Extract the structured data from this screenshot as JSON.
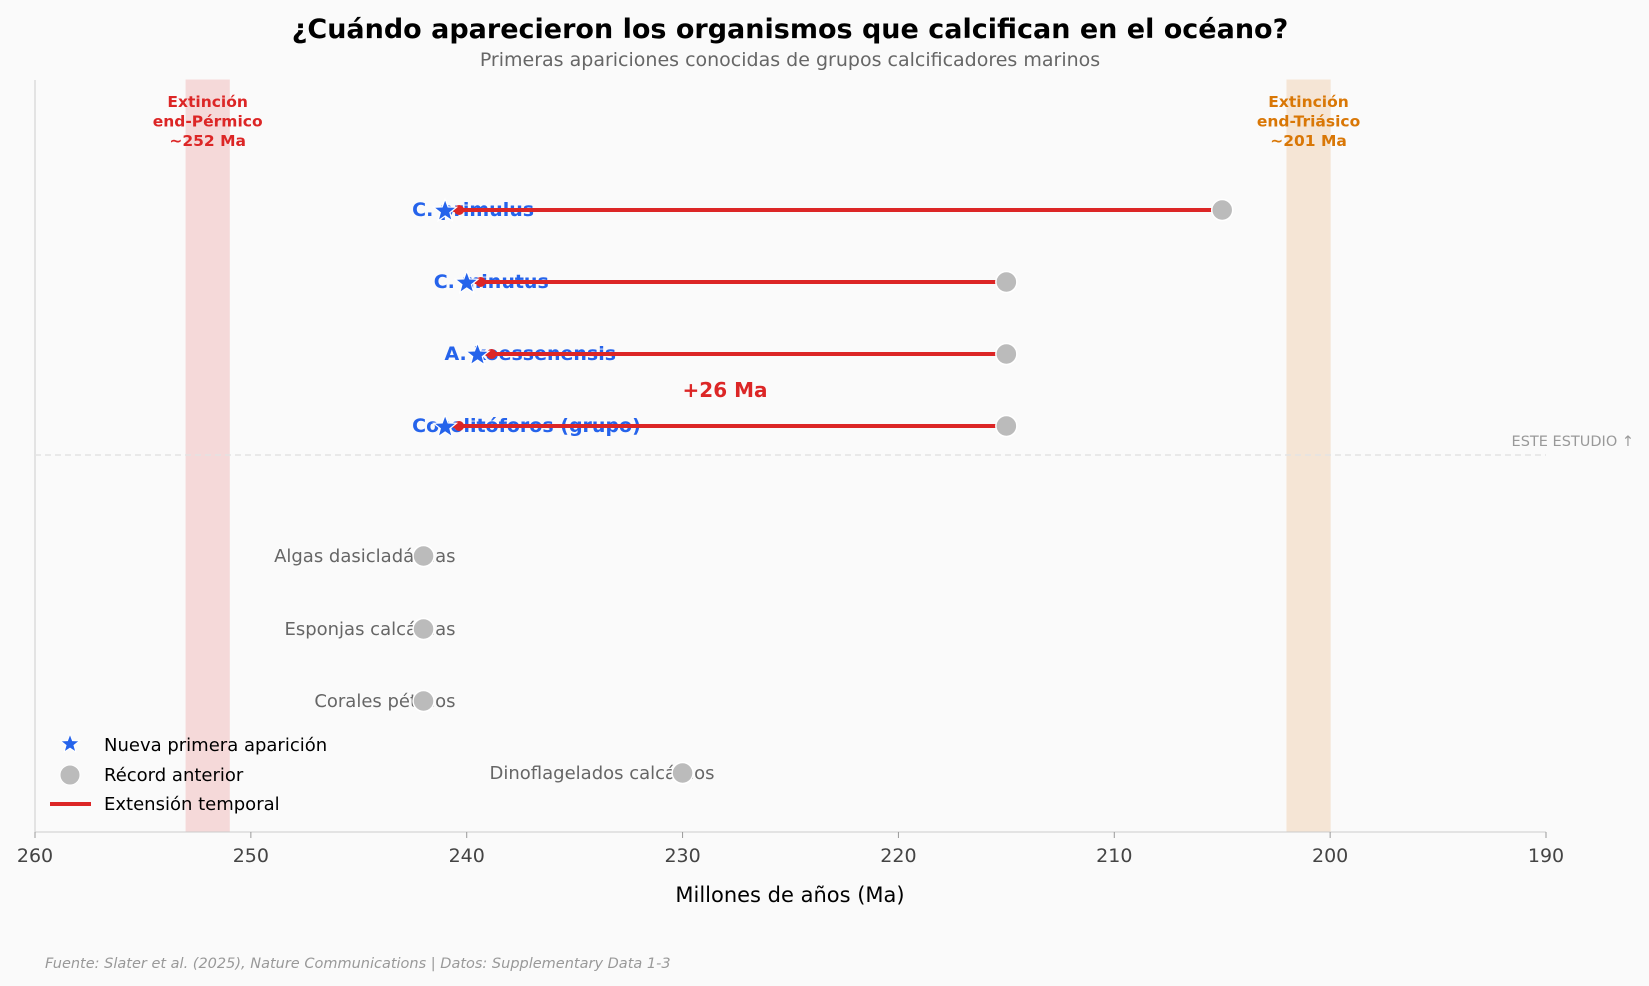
{
  "chart_data": {
    "type": "scatter",
    "title": "¿Cuándo aparecieron los organismos que calcifican en el océano?",
    "subtitle": "Primeras apariciones conocidas de grupos calcificadores marinos",
    "xlabel": "Millones de años (Ma)",
    "xlim": [
      260,
      190
    ],
    "x_reversed": true,
    "xticks": [
      260,
      250,
      240,
      230,
      220,
      210,
      200,
      190
    ],
    "grid": false,
    "new_records": [
      {
        "label": "C. primulus",
        "new_first_appearance": 241,
        "previous_record": 205
      },
      {
        "label": "C. minutus",
        "new_first_appearance": 240,
        "previous_record": 215
      },
      {
        "label": "A. koessenensis",
        "new_first_appearance": 239.5,
        "previous_record": 215
      },
      {
        "label": "Cocolitóforos (grupo)",
        "new_first_appearance": 241,
        "previous_record": 215
      }
    ],
    "other_groups": [
      {
        "label": "Algas dasicladáceas",
        "previous_record": 242
      },
      {
        "label": "Esponjas calcáreas",
        "previous_record": 242
      },
      {
        "label": "Corales pétreos",
        "previous_record": 242
      },
      {
        "label": "Dinoflagelados calcáreos",
        "previous_record": 230
      }
    ],
    "extension_annotation": "+26 Ma",
    "study_divider_label": "ESTE ESTUDIO ↑",
    "extinctions": [
      {
        "label": "Extinción\nend-Pérmico\n~252 Ma",
        "range": [
          253,
          251
        ],
        "color": "#dc2626",
        "fill": "#f5d9d9"
      },
      {
        "label": "Extinción\nend-Triásico\n~201 Ma",
        "range": [
          202,
          200
        ],
        "color": "#d97706",
        "fill": "#f5e5d5"
      }
    ],
    "legend": {
      "position": "bottom-left",
      "items": [
        "Nueva primera aparición",
        "Récord anterior",
        "Extensión temporal"
      ]
    },
    "colors": {
      "new": "#2563eb",
      "previous": "#bbbbbb",
      "extension": "#dc2626",
      "other_label": "#666666"
    }
  },
  "footer": "Fuente: Slater et al. (2025), Nature Communications | Datos: Supplementary Data 1-3"
}
